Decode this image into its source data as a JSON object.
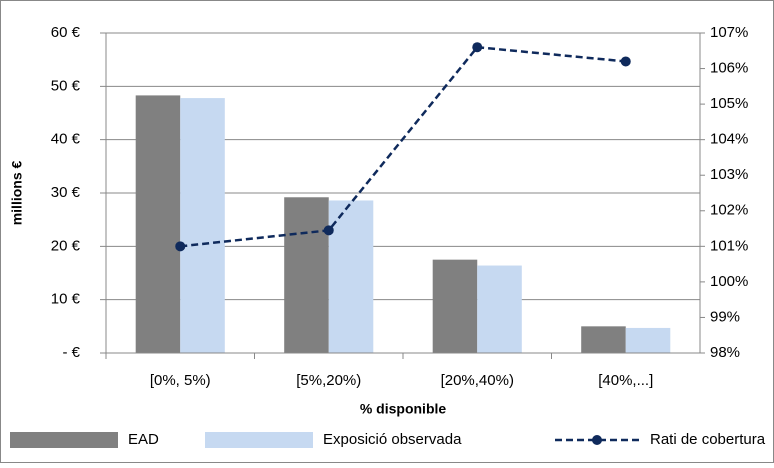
{
  "chart_data": {
    "type": "bar",
    "categories": [
      "[0%, 5%)",
      "[5%,20%)",
      "[20%,40%)",
      "[40%,...]"
    ],
    "series": [
      {
        "name": "EAD",
        "color": "#808080",
        "values": [
          48.3,
          29.2,
          17.5,
          5.0
        ]
      },
      {
        "name": "Exposició observada",
        "color": "#c6d9f1",
        "values": [
          47.8,
          28.6,
          16.4,
          4.7
        ]
      },
      {
        "name": "Rati de cobertura",
        "type": "line",
        "axis": "y2",
        "color": "#0f2a5c",
        "values": [
          101.0,
          101.45,
          106.6,
          106.2
        ]
      }
    ],
    "x_label": "% disponible",
    "y_label": "millions €",
    "ylim": [
      0,
      60
    ],
    "yticks": [
      {
        "value": 0,
        "label": "-  €"
      },
      {
        "value": 10,
        "label": "10 €"
      },
      {
        "value": 20,
        "label": "20 €"
      },
      {
        "value": 30,
        "label": "30 €"
      },
      {
        "value": 40,
        "label": "40 €"
      },
      {
        "value": 50,
        "label": "50 €"
      },
      {
        "value": 60,
        "label": "60 €"
      }
    ],
    "y2lim": [
      98,
      107
    ],
    "y2ticks": [
      {
        "value": 98,
        "label": "98%"
      },
      {
        "value": 99,
        "label": "99%"
      },
      {
        "value": 100,
        "label": "100%"
      },
      {
        "value": 101,
        "label": "101%"
      },
      {
        "value": 102,
        "label": "102%"
      },
      {
        "value": 103,
        "label": "103%"
      },
      {
        "value": 104,
        "label": "104%"
      },
      {
        "value": 105,
        "label": "105%"
      },
      {
        "value": 106,
        "label": "106%"
      },
      {
        "value": 107,
        "label": "107%"
      }
    ],
    "grid": true,
    "legend": "bottom"
  }
}
